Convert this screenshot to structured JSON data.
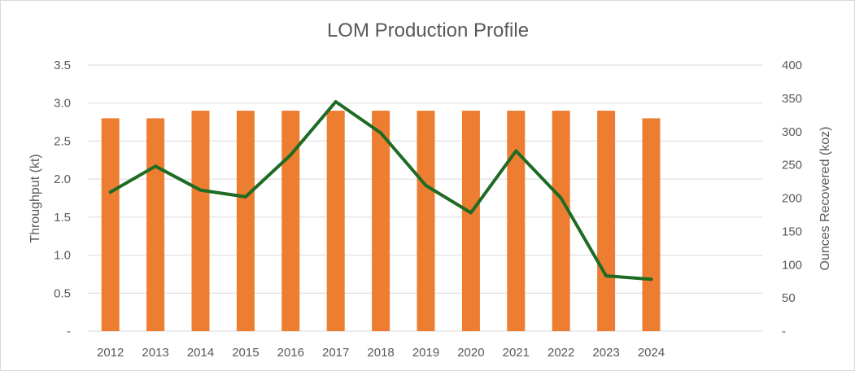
{
  "chart_data": {
    "type": "bar+line",
    "title": "LOM Production Profile",
    "categories": [
      "2012",
      "2013",
      "2014",
      "2015",
      "2016",
      "2017",
      "2018",
      "2019",
      "2020",
      "2021",
      "2022",
      "2023",
      "2024"
    ],
    "series": [
      {
        "type": "bar",
        "axis": "left",
        "color": "#ED7D31",
        "values": [
          2.8,
          2.8,
          2.9,
          2.9,
          2.9,
          2.9,
          2.9,
          2.9,
          2.9,
          2.9,
          2.9,
          2.9,
          2.8
        ]
      },
      {
        "type": "line",
        "axis": "right",
        "color": "#1E6B23",
        "values": [
          209,
          248,
          212,
          202,
          265,
          345,
          298,
          219,
          178,
          271,
          200,
          83,
          78
        ]
      }
    ],
    "y_left": {
      "label": "Throughput (kt)",
      "range": [
        0,
        3.5
      ],
      "ticks": [
        "-",
        "0.5",
        "1.0",
        "1.5",
        "2.0",
        "2.5",
        "3.0",
        "3.5"
      ]
    },
    "y_right": {
      "label": "Ounces Recovered (koz)",
      "range": [
        0,
        400
      ],
      "ticks": [
        "-",
        "50",
        "100",
        "150",
        "200",
        "250",
        "300",
        "350",
        "400"
      ]
    },
    "grid": true,
    "legend": "none"
  }
}
